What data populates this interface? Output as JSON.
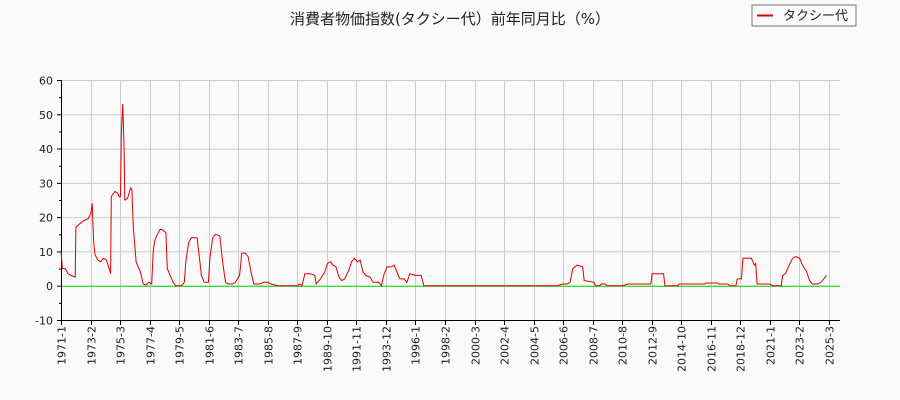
{
  "chart_data": {
    "type": "line",
    "title": "消費者物価指数(タクシー代）前年同月比（%）",
    "xlabel": "",
    "ylabel": "",
    "ylim": [
      -10,
      60
    ],
    "yticks": [
      -10,
      0,
      10,
      20,
      30,
      40,
      50,
      60
    ],
    "xtick_labels": [
      "1971-1",
      "1973-2",
      "1975-3",
      "1977-4",
      "1979-5",
      "1981-6",
      "1983-7",
      "1985-8",
      "1987-9",
      "1989-10",
      "1991-11",
      "1993-12",
      "1996-1",
      "1998-2",
      "2000-3",
      "2002-4",
      "2004-5",
      "2006-6",
      "2008-7",
      "2010-8",
      "2012-9",
      "2014-10",
      "2016-11",
      "2018-12",
      "2021-1",
      "2023-2",
      "2025-3"
    ],
    "grid": true,
    "legend_position": "top-right",
    "zero_line_color": "#00dd00",
    "series": [
      {
        "name": "タクシー代",
        "color": "#dd0000",
        "points": [
          [
            1971.0,
            10
          ],
          [
            1971.1,
            5
          ],
          [
            1971.3,
            5
          ],
          [
            1971.5,
            3.5
          ],
          [
            1971.7,
            3
          ],
          [
            1972.0,
            2.5
          ],
          [
            1972.05,
            17
          ],
          [
            1972.3,
            18
          ],
          [
            1972.6,
            19
          ],
          [
            1972.9,
            19.5
          ],
          [
            1973.1,
            21
          ],
          [
            1973.2,
            24
          ],
          [
            1973.3,
            13
          ],
          [
            1973.4,
            9
          ],
          [
            1973.6,
            7.5
          ],
          [
            1973.8,
            7
          ],
          [
            1974.0,
            8
          ],
          [
            1974.2,
            7.5
          ],
          [
            1974.4,
            5
          ],
          [
            1974.5,
            3.5
          ],
          [
            1974.55,
            26
          ],
          [
            1974.8,
            27.5
          ],
          [
            1975.0,
            27
          ],
          [
            1975.1,
            26
          ],
          [
            1975.2,
            26
          ],
          [
            1975.25,
            44
          ],
          [
            1975.35,
            53
          ],
          [
            1975.45,
            40
          ],
          [
            1975.5,
            25
          ],
          [
            1975.7,
            25.5
          ],
          [
            1975.9,
            28.5
          ],
          [
            1976.0,
            28
          ],
          [
            1976.1,
            17
          ],
          [
            1976.3,
            7
          ],
          [
            1976.6,
            4
          ],
          [
            1976.8,
            0.5
          ],
          [
            1977.0,
            0.2
          ],
          [
            1977.2,
            1
          ],
          [
            1977.4,
            0.5
          ],
          [
            1977.5,
            10
          ],
          [
            1977.6,
            13
          ],
          [
            1977.8,
            15
          ],
          [
            1978.0,
            16.5
          ],
          [
            1978.2,
            16.2
          ],
          [
            1978.4,
            15.5
          ],
          [
            1978.5,
            5
          ],
          [
            1978.7,
            3
          ],
          [
            1978.9,
            1
          ],
          [
            1979.1,
            0
          ],
          [
            1979.5,
            0
          ],
          [
            1979.7,
            1
          ],
          [
            1979.8,
            7
          ],
          [
            1980.0,
            12.5
          ],
          [
            1980.2,
            14
          ],
          [
            1980.6,
            14
          ],
          [
            1980.8,
            7
          ],
          [
            1980.9,
            3
          ],
          [
            1981.1,
            1
          ],
          [
            1981.4,
            1
          ],
          [
            1981.5,
            8
          ],
          [
            1981.7,
            14
          ],
          [
            1981.9,
            15
          ],
          [
            1982.2,
            14.5
          ],
          [
            1982.4,
            7
          ],
          [
            1982.6,
            1
          ],
          [
            1982.8,
            0.5
          ],
          [
            1983.1,
            0.5
          ],
          [
            1983.3,
            1
          ],
          [
            1983.6,
            3
          ],
          [
            1983.75,
            9.5
          ],
          [
            1984.0,
            9.5
          ],
          [
            1984.2,
            8.5
          ],
          [
            1984.4,
            4
          ],
          [
            1984.6,
            0.5
          ],
          [
            1985.0,
            0.5
          ],
          [
            1985.3,
            1
          ],
          [
            1985.6,
            1
          ],
          [
            1985.8,
            0.5
          ],
          [
            1986.3,
            0
          ],
          [
            1987.7,
            0
          ],
          [
            1987.8,
            0.5
          ],
          [
            1988.0,
            0
          ],
          [
            1988.2,
            3.5
          ],
          [
            1988.6,
            3.5
          ],
          [
            1988.9,
            3
          ],
          [
            1989.0,
            0.5
          ],
          [
            1989.3,
            2
          ],
          [
            1989.6,
            4
          ],
          [
            1989.8,
            6.5
          ],
          [
            1990.0,
            7
          ],
          [
            1990.2,
            6
          ],
          [
            1990.4,
            5.5
          ],
          [
            1990.6,
            2.5
          ],
          [
            1990.8,
            1.5
          ],
          [
            1991.0,
            2
          ],
          [
            1991.3,
            4.5
          ],
          [
            1991.5,
            7
          ],
          [
            1991.7,
            8
          ],
          [
            1991.9,
            7
          ],
          [
            1992.1,
            7.5
          ],
          [
            1992.3,
            4
          ],
          [
            1992.5,
            3
          ],
          [
            1992.8,
            2.5
          ],
          [
            1993.0,
            1
          ],
          [
            1993.4,
            1
          ],
          [
            1993.6,
            0
          ],
          [
            1993.8,
            3.5
          ],
          [
            1994.0,
            5.5
          ],
          [
            1994.3,
            5.5
          ],
          [
            1994.5,
            6
          ],
          [
            1994.7,
            4
          ],
          [
            1994.9,
            2
          ],
          [
            1995.2,
            2
          ],
          [
            1995.4,
            1
          ],
          [
            1995.6,
            3.5
          ],
          [
            1996.0,
            3
          ],
          [
            1996.4,
            3
          ],
          [
            1996.6,
            0
          ],
          [
            2000.0,
            0
          ],
          [
            2005.0,
            0
          ],
          [
            2006.0,
            0
          ],
          [
            2006.4,
            0.5
          ],
          [
            2006.7,
            0.5
          ],
          [
            2006.9,
            1
          ],
          [
            2007.1,
            5
          ],
          [
            2007.4,
            6
          ],
          [
            2007.8,
            5.5
          ],
          [
            2007.9,
            1.5
          ],
          [
            2008.6,
            1
          ],
          [
            2008.7,
            0
          ],
          [
            2009.0,
            0
          ],
          [
            2009.1,
            0.5
          ],
          [
            2009.4,
            0.5
          ],
          [
            2009.5,
            0
          ],
          [
            2010.6,
            0
          ],
          [
            2011.0,
            0.5
          ],
          [
            2012.6,
            0.5
          ],
          [
            2012.7,
            3.5
          ],
          [
            2013.5,
            3.5
          ],
          [
            2013.6,
            0
          ],
          [
            2014.5,
            0
          ],
          [
            2014.6,
            0.5
          ],
          [
            2016.4,
            0.5
          ],
          [
            2016.5,
            0.8
          ],
          [
            2017.3,
            0.8
          ],
          [
            2017.4,
            0.5
          ],
          [
            2018.0,
            0.5
          ],
          [
            2018.2,
            0
          ],
          [
            2018.6,
            0
          ],
          [
            2018.7,
            2
          ],
          [
            2019.0,
            2
          ],
          [
            2019.1,
            8
          ],
          [
            2019.7,
            8
          ],
          [
            2019.9,
            6
          ],
          [
            2020.0,
            6.5
          ],
          [
            2020.1,
            0.5
          ],
          [
            2021.0,
            0.5
          ],
          [
            2021.2,
            0
          ],
          [
            2021.8,
            0
          ],
          [
            2021.9,
            3
          ],
          [
            2022.1,
            3.5
          ],
          [
            2022.3,
            5.5
          ],
          [
            2022.6,
            8
          ],
          [
            2022.8,
            8.5
          ],
          [
            2023.1,
            8
          ],
          [
            2023.3,
            6
          ],
          [
            2023.6,
            4
          ],
          [
            2023.8,
            1.5
          ],
          [
            2024.0,
            0.5
          ],
          [
            2024.4,
            0.5
          ],
          [
            2024.6,
            1
          ],
          [
            2024.8,
            2
          ],
          [
            2025.0,
            3
          ]
        ]
      }
    ]
  },
  "legend": {
    "label": "タクシー代"
  }
}
